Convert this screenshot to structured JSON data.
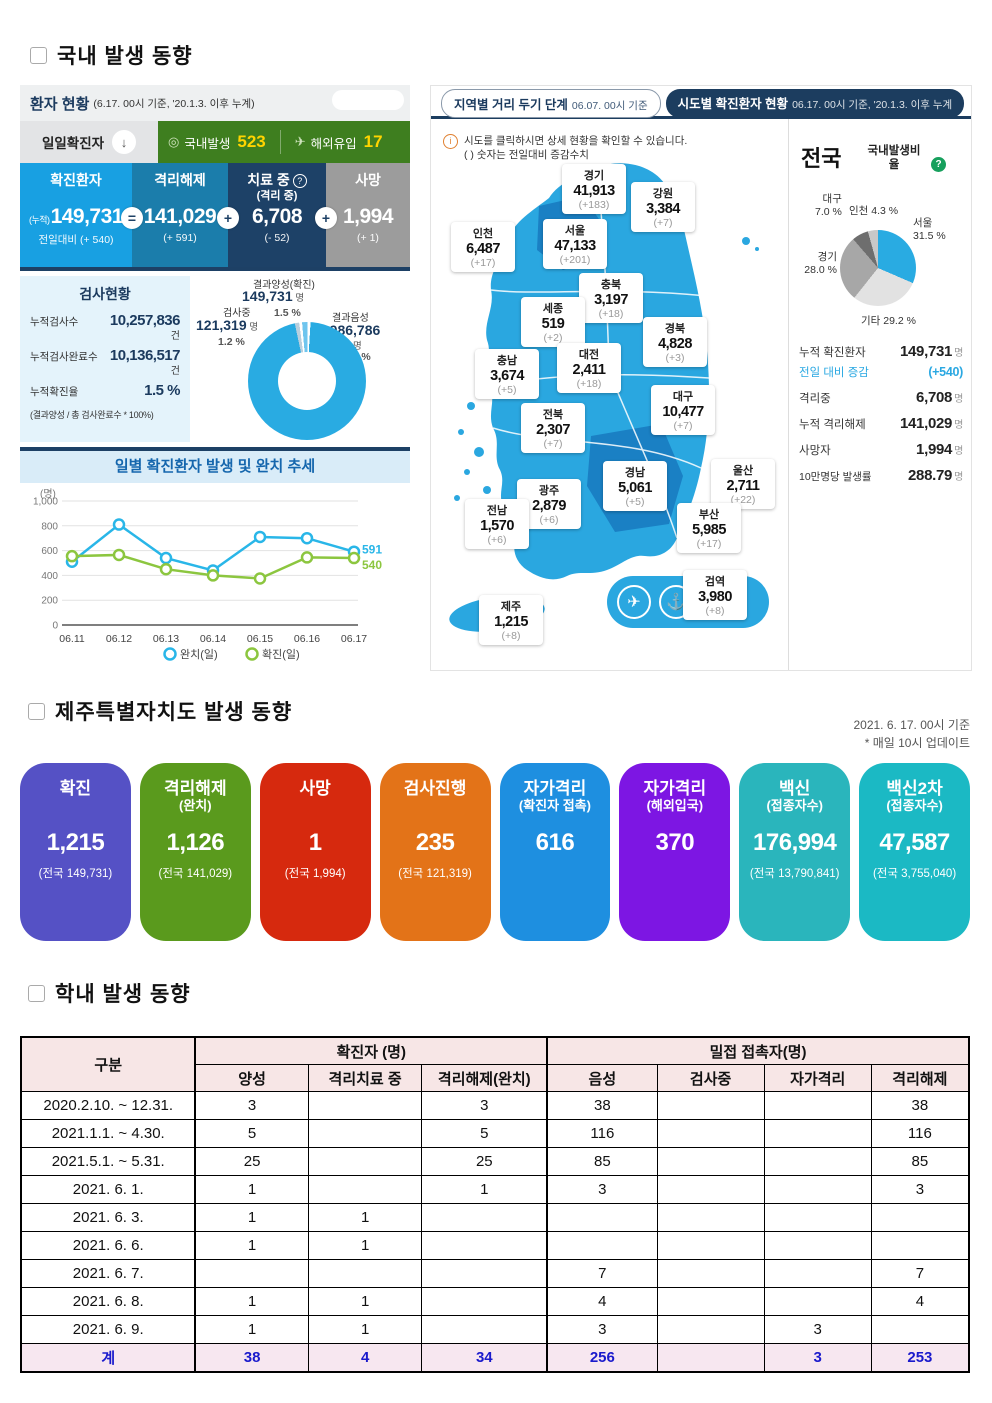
{
  "colors": {
    "navy": "#1c3d5f",
    "accent_blue": "#29abe2",
    "green_bar": "#3e7e1f",
    "highlight_yellow": "#ffd400",
    "map_blue": "#2aa7e0",
    "map_dark_blue": "#1a80c4"
  },
  "icons": {
    "down_arrow": "↓",
    "plane": "✈",
    "anchor": "⚓",
    "question_mark": "?",
    "info": "i"
  },
  "section_domestic": {
    "heading": "국내 발생 동향",
    "patient_status": {
      "title": "환자 현황",
      "subtitle": "(6.17. 00시 기준, '20.1.3. 이후 누계)",
      "daily_label": "일일확진자",
      "domestic_label": "국내발생",
      "domestic_value": "523",
      "imported_label": "해외유입",
      "imported_value": "17",
      "boxes": [
        {
          "label": "확진환자",
          "sublabel": "",
          "prefix": "(누적)",
          "value": "149,731",
          "delta": "전일대비 (+ 540)",
          "joiner": "=",
          "color": "#18a0e2"
        },
        {
          "label": "격리해제",
          "sublabel": "",
          "prefix": "",
          "value": "141,029",
          "delta": "(+ 591)",
          "joiner": "+",
          "color": "#1b7dab"
        },
        {
          "label": "치료 중",
          "sublabel": "(격리 중)",
          "prefix": "",
          "value": "6,708",
          "delta": "(- 52)",
          "joiner": "+",
          "color": "#1d4167"
        },
        {
          "label": "사망",
          "sublabel": "",
          "prefix": "",
          "value": "1,994",
          "delta": "(+ 1)",
          "joiner": "",
          "color": "#9c9c9c"
        }
      ]
    },
    "test_status": {
      "title": "검사현황",
      "rows": [
        {
          "label": "누적검사수",
          "value": "10,257,836",
          "unit": "건"
        },
        {
          "label": "누적검사완료수",
          "value": "10,136,517",
          "unit": "건"
        },
        {
          "label": "누적확진율",
          "value": "1.5 %",
          "unit": ""
        }
      ],
      "note": "(결과양성 / 총 검사완료수 * 100%)"
    },
    "trend_title": "일별 확진환자 발생 및 완치 추세"
  },
  "map_panel": {
    "tab_distancing": "지역별 거리 두기 단계",
    "tab_distancing_date": "06.07. 00시 기준",
    "tab_confirmed": "시도별 확진환자 현황",
    "tab_confirmed_date": "06.17. 00시 기준, '20.1.3. 이후 누계",
    "info_line1": "시도를 클릭하시면 상세 현황을 확인할 수 있습니다.",
    "info_line2": "( ) 숫자는 전일대비 증감수치",
    "regions": [
      {
        "name": "경기",
        "value": "41,913",
        "delta": "(+183)"
      },
      {
        "name": "강원",
        "value": "3,384",
        "delta": "(+7)"
      },
      {
        "name": "인천",
        "value": "6,487",
        "delta": "(+17)"
      },
      {
        "name": "서울",
        "value": "47,133",
        "delta": "(+201)"
      },
      {
        "name": "충북",
        "value": "3,197",
        "delta": "(+18)"
      },
      {
        "name": "세종",
        "value": "519",
        "delta": "(+2)"
      },
      {
        "name": "경북",
        "value": "4,828",
        "delta": "(+3)"
      },
      {
        "name": "충남",
        "value": "3,674",
        "delta": "(+5)"
      },
      {
        "name": "대전",
        "value": "2,411",
        "delta": "(+18)"
      },
      {
        "name": "대구",
        "value": "10,477",
        "delta": "(+7)"
      },
      {
        "name": "전북",
        "value": "2,307",
        "delta": "(+7)"
      },
      {
        "name": "경남",
        "value": "5,061",
        "delta": "(+5)"
      },
      {
        "name": "울산",
        "value": "2,711",
        "delta": "(+22)"
      },
      {
        "name": "광주",
        "value": "2,879",
        "delta": "(+6)"
      },
      {
        "name": "전남",
        "value": "1,570",
        "delta": "(+6)"
      },
      {
        "name": "부산",
        "value": "5,985",
        "delta": "(+17)"
      },
      {
        "name": "제주",
        "value": "1,215",
        "delta": "(+8)"
      },
      {
        "name": "검역",
        "value": "3,980",
        "delta": "(+8)"
      }
    ]
  },
  "national_panel": {
    "title": "전국",
    "pie_title": "국내발생비율",
    "stats": [
      {
        "label": "누적 확진환자",
        "value": "149,731",
        "unit": "명"
      },
      {
        "label": "전일 대비 증감",
        "value": "(+540)",
        "unit": ""
      },
      {
        "label": "격리중",
        "value": "6,708",
        "unit": "명"
      },
      {
        "label": "누적 격리해제",
        "value": "141,029",
        "unit": "명"
      },
      {
        "label": "사망자",
        "value": "1,994",
        "unit": "명"
      },
      {
        "label": "10만명당 발생률",
        "value": "288.79",
        "unit": "명"
      }
    ]
  },
  "section_jeju": {
    "heading": "제주특별자치도 발생 동향",
    "date_note1": "2021. 6. 17. 00시 기준",
    "date_note2": "* 매일 10시 업데이트",
    "cards": [
      {
        "title": "확진",
        "subtitle": "",
        "value": "1,215",
        "note": "(전국 149,731)",
        "color": "#5551c5"
      },
      {
        "title": "격리해제",
        "subtitle": "(완치)",
        "value": "1,126",
        "note": "(전국 141,029)",
        "color": "#5a9a1d"
      },
      {
        "title": "사망",
        "subtitle": "",
        "value": "1",
        "note": "(전국 1,994)",
        "color": "#d6290e"
      },
      {
        "title": "검사진행",
        "subtitle": "",
        "value": "235",
        "note": "(전국 121,319)",
        "color": "#e37318"
      },
      {
        "title": "자가격리",
        "subtitle": "(확진자 접촉)",
        "value": "616",
        "note": "",
        "color": "#1e8fe0"
      },
      {
        "title": "자가격리",
        "subtitle": "(해외입국)",
        "value": "370",
        "note": "",
        "color": "#7d16e3"
      },
      {
        "title": "백신",
        "subtitle": "(접종자수)",
        "value": "176,994",
        "note": "(전국 13,790,841)",
        "color": "#2ab5bc"
      },
      {
        "title": "백신2차",
        "subtitle": "(접종자수)",
        "value": "47,587",
        "note": "(전국 3,755,040)",
        "color": "#1bb9c4"
      }
    ]
  },
  "section_school": {
    "heading": "학내 발생 동향",
    "table": {
      "col_group1": "구분",
      "col_group2": "확진자 (명)",
      "col_group3": "밀접 접촉자(명)",
      "sub_headers": [
        "양성",
        "격리치료 중",
        "격리해제(완치)",
        "음성",
        "검사중",
        "자가격리",
        "격리해제"
      ],
      "rows": [
        [
          "2020.2.10. ~ 12.31.",
          "3",
          "",
          "3",
          "38",
          "",
          "",
          "38"
        ],
        [
          "2021.1.1. ~ 4.30.",
          "5",
          "",
          "5",
          "116",
          "",
          "",
          "116"
        ],
        [
          "2021.5.1. ~ 5.31.",
          "25",
          "",
          "25",
          "85",
          "",
          "",
          "85"
        ],
        [
          "2021. 6. 1.",
          "1",
          "",
          "1",
          "3",
          "",
          "",
          "3"
        ],
        [
          "2021. 6. 3.",
          "1",
          "1",
          "",
          "",
          "",
          "",
          ""
        ],
        [
          "2021. 6. 6.",
          "1",
          "1",
          "",
          "",
          "",
          "",
          ""
        ],
        [
          "2021. 6. 7.",
          "",
          "",
          "",
          "7",
          "",
          "",
          "7"
        ],
        [
          "2021. 6. 8.",
          "1",
          "1",
          "",
          "4",
          "",
          "",
          "4"
        ],
        [
          "2021. 6. 9.",
          "1",
          "1",
          "",
          "3",
          "",
          "3",
          ""
        ]
      ],
      "total": [
        "계",
        "38",
        "4",
        "34",
        "256",
        "",
        "3",
        "253"
      ]
    }
  },
  "chart_data": [
    {
      "type": "line",
      "title": "일별 확진환자 발생 및 완치 추세",
      "ylabel": "(명)",
      "x": [
        "06.11",
        "06.12",
        "06.13",
        "06.14",
        "06.15",
        "06.16",
        "06.17"
      ],
      "series": [
        {
          "name": "완치(일)",
          "color": "#29b6e8",
          "values": [
            510,
            810,
            540,
            440,
            710,
            700,
            591
          ]
        },
        {
          "name": "확진(일)",
          "color": "#8cc63f",
          "values": [
            555,
            565,
            450,
            400,
            375,
            545,
            540
          ]
        }
      ],
      "ylim": [
        0,
        1000
      ],
      "yticks": [
        "0",
        "200",
        "400",
        "600",
        "800",
        "1,000"
      ],
      "grid": true,
      "legend_position": "bottom"
    },
    {
      "type": "pie",
      "subtype": "donut",
      "title": "검사현황",
      "slices": [
        {
          "label": "결과양성(확진)",
          "value": "149,731",
          "unit": "명",
          "pct": 1.5,
          "pct_text": "1.5 %",
          "color": "#6fc5ee"
        },
        {
          "label": "검사중",
          "value": "121,319",
          "unit": "명",
          "pct": 1.2,
          "pct_text": "1.2 %",
          "color": "#b9cfdd"
        },
        {
          "label": "결과음성",
          "value": "9,986,786",
          "unit": "명",
          "pct": 97.4,
          "pct_text": "97.4 %",
          "color": "#29abe2"
        }
      ]
    },
    {
      "type": "pie",
      "title": "국내발생비율",
      "slices": [
        {
          "label": "서울",
          "pct": 31.5,
          "pct_text": "31.5 %",
          "color": "#29abe2"
        },
        {
          "label": "기타",
          "pct": 29.2,
          "pct_text": "29.2 %",
          "color": "#e2e2e2"
        },
        {
          "label": "경기",
          "pct": 28.0,
          "pct_text": "28.0 %",
          "color": "#a7a7a7"
        },
        {
          "label": "대구",
          "pct": 7.0,
          "pct_text": "7.0 %",
          "color": "#6e6e6e"
        },
        {
          "label": "인천",
          "pct": 4.3,
          "pct_text": "4.3 %",
          "color": "#c8c8c8"
        }
      ]
    }
  ]
}
